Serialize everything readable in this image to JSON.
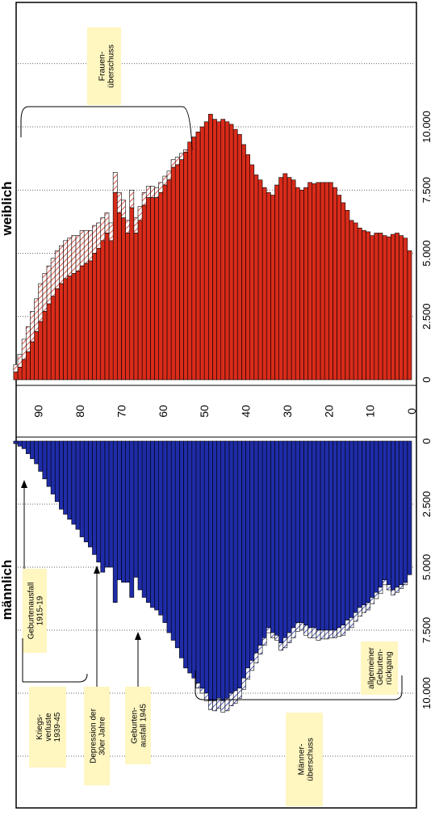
{
  "chart_data": {
    "type": "bar",
    "subtype": "population-pyramid",
    "orientation": "rotated-90-ccw",
    "panels": {
      "female": {
        "label": "weiblich",
        "bar_color": "#d92b1a",
        "surplus_label": "Frauen-überschuss"
      },
      "male": {
        "label": "männlich",
        "bar_color": "#1f2ca8",
        "surplus_label": "Männer-überschuss"
      }
    },
    "age_axis": {
      "min": 0,
      "max": 95,
      "ticks": [
        "0",
        "10",
        "20",
        "30",
        "40",
        "50",
        "60",
        "70",
        "80",
        "90"
      ]
    },
    "count_axis_female": {
      "min": 0,
      "max": 12500,
      "ticks": [
        "0",
        "2.500",
        "5.000",
        "7.500",
        "10.000"
      ]
    },
    "count_axis_male": {
      "min": 0,
      "max": 12500,
      "ticks": [
        "0",
        "2.500",
        "5.000",
        "7.500",
        "10.000"
      ]
    },
    "female_by_age": [
      5100,
      5600,
      5700,
      5800,
      5750,
      5650,
      5700,
      5800,
      5800,
      5700,
      5850,
      5900,
      6000,
      6200,
      6300,
      6700,
      7000,
      7300,
      7600,
      7800,
      7800,
      7800,
      7800,
      7750,
      7800,
      7600,
      7500,
      7600,
      7900,
      8000,
      8150,
      8000,
      7700,
      7300,
      7400,
      7600,
      7900,
      8100,
      8500,
      8900,
      9300,
      9700,
      9900,
      10100,
      10200,
      10300,
      10200,
      10300,
      10500,
      10200,
      10000,
      9800,
      9600,
      9400,
      9000,
      8700,
      8500,
      8400,
      7900,
      7700,
      7400,
      7200,
      7200,
      7200,
      6900,
      6300,
      5800,
      6800,
      5800,
      6400,
      6600,
      7400,
      5500,
      5800,
      5500,
      5200,
      5000,
      4700,
      4600,
      4500,
      4300,
      4200,
      4100,
      4000,
      3800,
      3600,
      3300,
      3000,
      2700,
      2300,
      1900,
      1500,
      1100,
      800,
      500,
      300
    ],
    "female_surplus_by_age": [
      0,
      0,
      0,
      0,
      0,
      0,
      0,
      0,
      0,
      0,
      0,
      0,
      0,
      0,
      0,
      0,
      0,
      0,
      0,
      0,
      0,
      0,
      0,
      0,
      0,
      0,
      0,
      0,
      0,
      0,
      0,
      0,
      0,
      0,
      0,
      0,
      0,
      0,
      0,
      0,
      0,
      0,
      0,
      0,
      0,
      0,
      0,
      0,
      0,
      0,
      0,
      0,
      0,
      0,
      100,
      250,
      300,
      300,
      350,
      350,
      400,
      400,
      450,
      450,
      500,
      550,
      600,
      700,
      500,
      700,
      800,
      800,
      700,
      800,
      900,
      1000,
      1100,
      1200,
      1300,
      1400,
      1400,
      1500,
      1500,
      1500,
      1500,
      1500,
      1500,
      1500,
      1500,
      1500,
      1300,
      1200,
      1000,
      800,
      500,
      300
    ],
    "male_by_age": [
      5300,
      5600,
      5700,
      5800,
      5900,
      5700,
      5500,
      5800,
      6000,
      6200,
      6400,
      6500,
      6600,
      6800,
      7000,
      7100,
      7300,
      7400,
      7500,
      7500,
      7500,
      7500,
      7500,
      7400,
      7400,
      7300,
      7200,
      7200,
      7400,
      7600,
      7800,
      8000,
      7700,
      7600,
      7400,
      7800,
      8100,
      8400,
      8700,
      9000,
      9400,
      9800,
      9900,
      10000,
      10200,
      10300,
      10200,
      10300,
      10300,
      10000,
      9800,
      9600,
      9400,
      9200,
      9000,
      8600,
      8200,
      7900,
      7600,
      7200,
      6900,
      6700,
      6600,
      6400,
      6200,
      5900,
      5400,
      6200,
      5600,
      5600,
      5500,
      6400,
      5000,
      5000,
      5200,
      4800,
      4500,
      4200,
      4000,
      3800,
      3500,
      3300,
      3100,
      2900,
      2700,
      2400,
      2100,
      1800,
      1500,
      1200,
      900,
      700,
      500,
      300,
      200,
      100
    ],
    "male_surplus_by_age": [
      0,
      100,
      150,
      200,
      200,
      200,
      200,
      250,
      250,
      250,
      300,
      300,
      350,
      350,
      400,
      400,
      400,
      350,
      300,
      300,
      350,
      350,
      400,
      400,
      400,
      400,
      300,
      350,
      400,
      400,
      400,
      300,
      200,
      200,
      200,
      300,
      350,
      400,
      400,
      450,
      450,
      400,
      500,
      500,
      500,
      450,
      400,
      400,
      350,
      300,
      200,
      200,
      0,
      0,
      0,
      0,
      0,
      0,
      0,
      0,
      0,
      0,
      0,
      0,
      0,
      0,
      0,
      0,
      0,
      0,
      0,
      0,
      0,
      0,
      0,
      0,
      0,
      0,
      0,
      0,
      0,
      0,
      0,
      0,
      0,
      0,
      0,
      0,
      0,
      0,
      0,
      0,
      0,
      0,
      0,
      0
    ],
    "annotations": {
      "geburtenausfall_1915": "Geburtenausfall 1915-19",
      "kriegsverluste": "Kriegs-verluste 1939-45",
      "depression": "Depression der 30er Jahre",
      "geburtenausfall_1945": "Geburten-ausfall 1945",
      "geburtenrueckgang": "allgemeiner Geburten-rückgang"
    }
  }
}
